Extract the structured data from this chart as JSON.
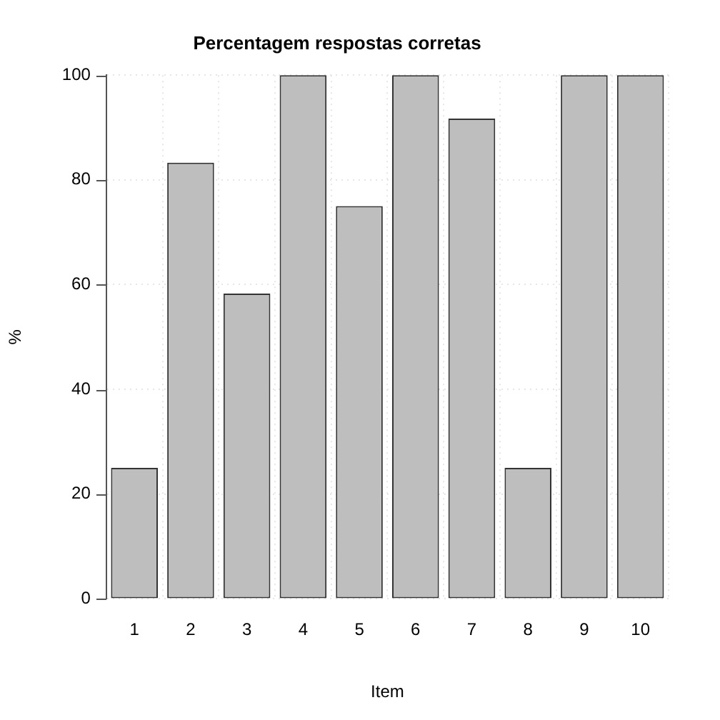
{
  "chart_data": {
    "type": "bar",
    "title": "Percentagem respostas corretas",
    "xlabel": "Item",
    "ylabel": "%",
    "categories": [
      "1",
      "2",
      "3",
      "4",
      "5",
      "6",
      "7",
      "8",
      "9",
      "10"
    ],
    "values": [
      25,
      83.3,
      58.3,
      100,
      75,
      100,
      91.7,
      25,
      100,
      100
    ],
    "color": "#bebebe",
    "ylim": [
      0,
      100
    ],
    "yticks": [
      0,
      20,
      40,
      60,
      80,
      100
    ],
    "grid": true
  }
}
